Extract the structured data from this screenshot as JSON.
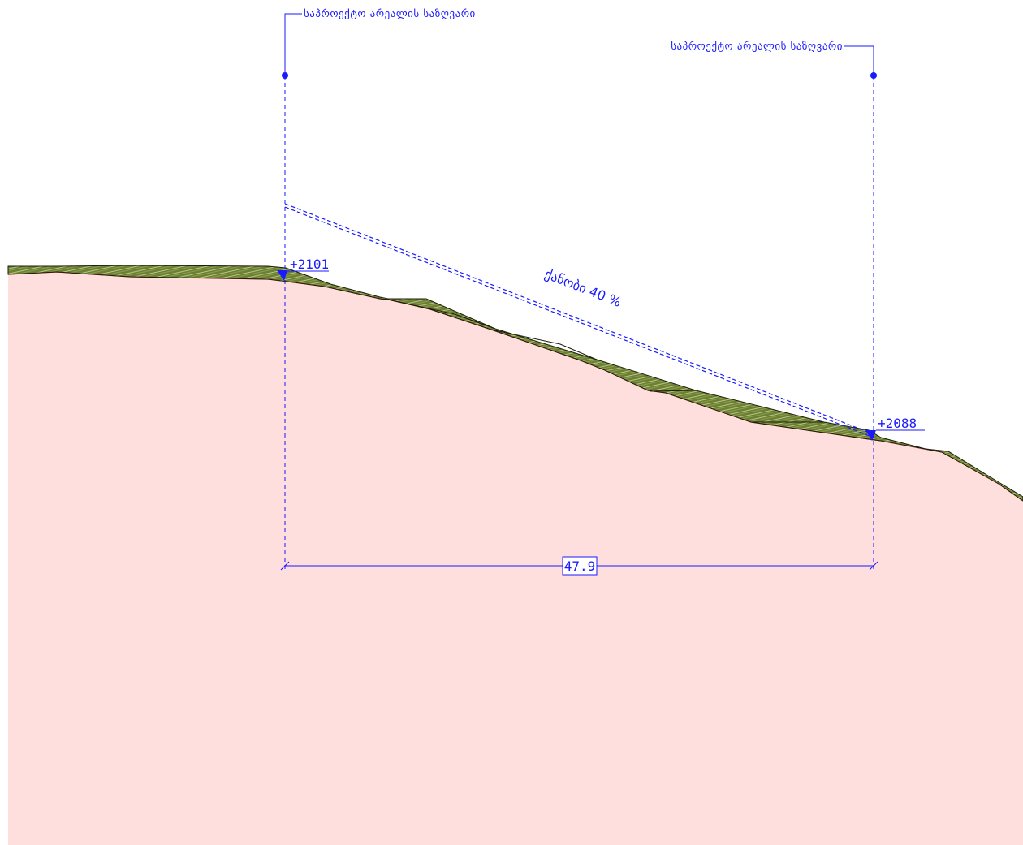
{
  "boundary_left_label": "საპროექტო არეალის საზღვარი",
  "boundary_right_label": "საპროექტო არეალის საზღვარი",
  "slope_label": "ქანობი 40 %",
  "elevation_left": "+2101",
  "elevation_right": "+2088",
  "distance_label": "47.9",
  "colors": {
    "annotation": "#1a1aff",
    "ground_fill": "#ffdede",
    "ground_line": "#e8241c",
    "grass_fill": "#6d7f33",
    "grass_light": "#c9d89a",
    "grass_edge": "#1b1f0c"
  }
}
